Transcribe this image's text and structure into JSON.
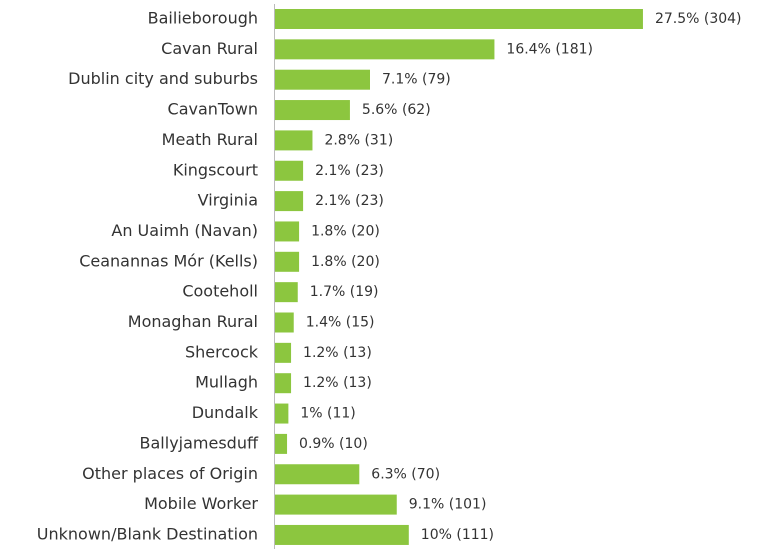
{
  "chart_data": {
    "type": "barh",
    "categories": [
      "Bailieborough",
      "Cavan Rural",
      "Dublin city and suburbs",
      "CavanTown",
      "Meath Rural",
      "Kingscourt",
      "Virginia",
      "An Uaimh (Navan)",
      "Ceanannas Mór (Kells)",
      "Cooteholl",
      "Monaghan Rural",
      "Shercock",
      "Mullagh",
      "Dundalk",
      "Ballyjamesduff",
      "Other places of Origin",
      "Mobile Worker",
      "Unknown/Blank Destination"
    ],
    "values": [
      27.5,
      16.4,
      7.1,
      5.6,
      2.8,
      2.1,
      2.1,
      1.8,
      1.8,
      1.7,
      1.4,
      1.2,
      1.2,
      1,
      0.9,
      6.3,
      9.1,
      10
    ],
    "value_labels": [
      "27.5% (304)",
      "16.4% (181)",
      "7.1% (79)",
      "5.6% (62)",
      "2.8% (31)",
      "2.1% (23)",
      "2.1% (23)",
      "1.8% (20)",
      "1.8% (20)",
      "1.7% (19)",
      "1.4% (15)",
      "1.2% (13)",
      "1.2% (13)",
      "1% (11)",
      "0.9% (10)",
      "6.3% (70)",
      "9.1% (101)",
      "10% (111)"
    ],
    "color": "#8cc63f"
  }
}
